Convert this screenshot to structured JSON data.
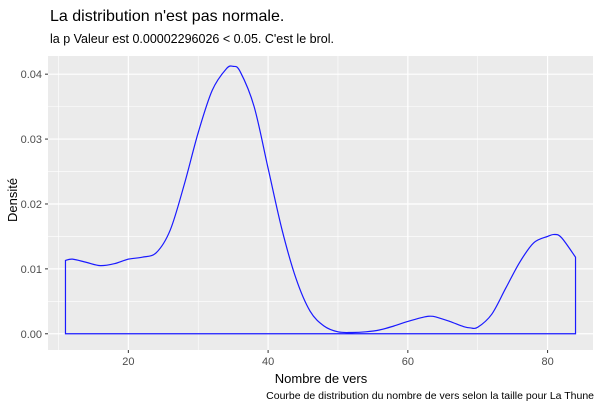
{
  "chart_data": {
    "type": "area",
    "title": "La distribution n'est pas normale.",
    "subtitle": "la p Valeur est  0.00002296026  < 0.05. C'est le brol.",
    "xlabel": "Nombre de vers",
    "ylabel": "Densité",
    "caption": "Courbe de distribution du nombre de vers selon la taille pour  La Thune",
    "xlim": [
      8.5,
      86.5
    ],
    "ylim": [
      -0.0025,
      0.0428
    ],
    "x_ticks": [
      20,
      40,
      60,
      80
    ],
    "y_ticks": [
      0.0,
      0.01,
      0.02,
      0.03,
      0.04
    ],
    "x_tick_labels": [
      "20",
      "40",
      "60",
      "80"
    ],
    "y_tick_labels": [
      "0.00",
      "0.01",
      "0.02",
      "0.03",
      "0.04"
    ],
    "grid": true,
    "x": [
      11,
      12,
      14,
      16,
      18,
      20,
      22,
      24,
      26,
      28,
      30,
      32,
      34,
      35,
      36,
      38,
      40,
      42,
      44,
      46,
      48,
      50,
      52,
      54,
      56,
      58,
      60,
      62,
      63,
      64,
      66,
      68,
      69,
      70,
      72,
      74,
      76,
      78,
      80,
      81,
      82,
      84
    ],
    "y": [
      0.0113,
      0.0115,
      0.011,
      0.0105,
      0.0108,
      0.0115,
      0.0118,
      0.0125,
      0.016,
      0.023,
      0.031,
      0.0375,
      0.0408,
      0.0412,
      0.0404,
      0.035,
      0.0255,
      0.016,
      0.0085,
      0.0035,
      0.0012,
      0.0003,
      0.0002,
      0.0003,
      0.0006,
      0.0012,
      0.0019,
      0.0025,
      0.0027,
      0.0026,
      0.0019,
      0.0011,
      0.0009,
      0.001,
      0.003,
      0.007,
      0.011,
      0.014,
      0.015,
      0.0153,
      0.0148,
      0.0118
    ],
    "line_color": "#1a1aff",
    "fill": "none",
    "panel_background": "#ebebeb",
    "grid_color": "#ffffff"
  }
}
